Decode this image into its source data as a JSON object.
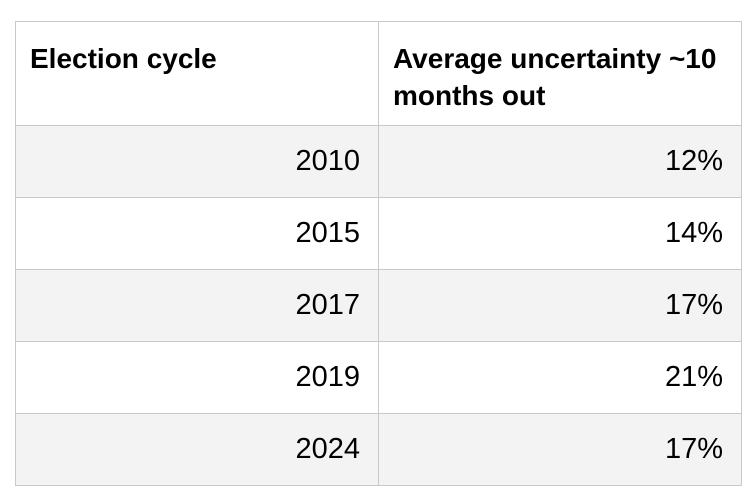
{
  "table": {
    "headers": [
      "Election cycle",
      "Average uncertainty ~10 months out"
    ],
    "rows": [
      [
        "2010",
        "12%"
      ],
      [
        "2015",
        "14%"
      ],
      [
        "2017",
        "17%"
      ],
      [
        "2019",
        "21%"
      ],
      [
        "2024",
        "17%"
      ]
    ]
  },
  "chart_data": {
    "type": "table",
    "columns": [
      "Election cycle",
      "Average uncertainty ~10 months out"
    ],
    "rows": [
      [
        "2010",
        "12%"
      ],
      [
        "2015",
        "14%"
      ],
      [
        "2017",
        "17%"
      ],
      [
        "2019",
        "21%"
      ],
      [
        "2024",
        "17%"
      ]
    ]
  }
}
